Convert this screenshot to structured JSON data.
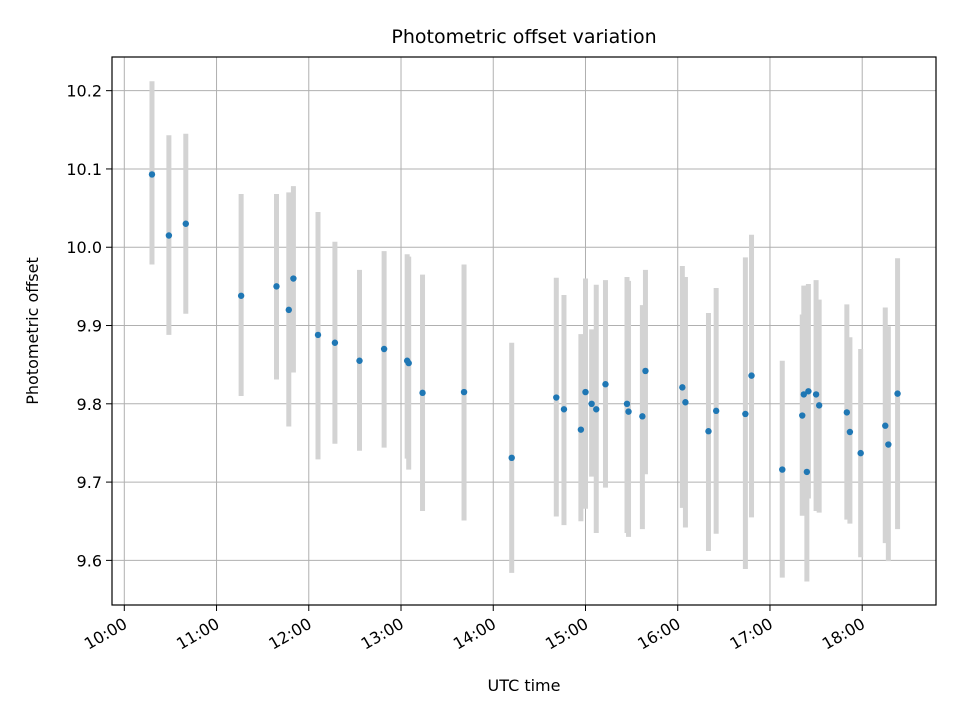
{
  "chart_data": {
    "type": "scatter",
    "title": "Photometric offset variation",
    "xlabel": "UTC time",
    "ylabel": "Photometric offset",
    "x_tick_labels": [
      "10:00",
      "11:00",
      "12:00",
      "13:00",
      "14:00",
      "15:00",
      "16:00",
      "17:00",
      "18:00"
    ],
    "y_tick_labels": [
      "9.6",
      "9.7",
      "9.8",
      "9.9",
      "10.0",
      "10.1",
      "10.2"
    ],
    "xlim": [
      "09:52",
      "18:48"
    ],
    "ylim": [
      9.543,
      10.243
    ],
    "grid": true,
    "colors": {
      "points": "#1f77b4",
      "errorbars": "#d3d3d3",
      "grid": "#b0b0b0"
    },
    "series": [
      {
        "x": [
          "10:18",
          "10:29",
          "10:40",
          "11:16",
          "11:39",
          "11:47",
          "11:50",
          "12:06",
          "12:17",
          "12:33",
          "12:49",
          "13:04",
          "13:05",
          "13:14",
          "13:41",
          "14:12",
          "14:41",
          "14:46",
          "14:57",
          "15:00",
          "15:04",
          "15:07",
          "15:13",
          "15:27",
          "15:28",
          "15:37",
          "15:39",
          "16:03",
          "16:05",
          "16:20",
          "16:25",
          "16:44",
          "16:48",
          "17:08",
          "17:21",
          "17:22",
          "17:24",
          "17:25",
          "17:30",
          "17:32",
          "17:50",
          "17:52",
          "17:59",
          "18:15",
          "18:17",
          "18:23"
        ],
        "y": [
          10.093,
          10.015,
          10.03,
          9.938,
          9.95,
          9.92,
          9.96,
          9.888,
          9.878,
          9.855,
          9.87,
          9.855,
          9.852,
          9.814,
          9.815,
          9.731,
          9.808,
          9.793,
          9.767,
          9.815,
          9.8,
          9.793,
          9.825,
          9.8,
          9.79,
          9.784,
          9.842,
          9.821,
          9.802,
          9.765,
          9.791,
          9.787,
          9.836,
          9.716,
          9.785,
          9.812,
          9.713,
          9.816,
          9.812,
          9.798,
          9.789,
          9.764,
          9.737,
          9.772,
          9.748,
          9.813
        ],
        "err_low": [
          9.978,
          9.888,
          9.915,
          9.81,
          9.831,
          9.771,
          9.84,
          9.729,
          9.749,
          9.74,
          9.744,
          9.73,
          9.716,
          9.663,
          9.651,
          9.584,
          9.656,
          9.645,
          9.65,
          9.666,
          9.707,
          9.635,
          9.693,
          9.635,
          9.63,
          9.64,
          9.71,
          9.667,
          9.642,
          9.612,
          9.634,
          9.589,
          9.655,
          9.578,
          9.657,
          9.66,
          9.573,
          9.679,
          9.663,
          9.661,
          9.652,
          9.647,
          9.604,
          9.622,
          9.599,
          9.64
        ],
        "err_high": [
          10.212,
          10.143,
          10.145,
          10.068,
          10.068,
          10.07,
          10.078,
          10.045,
          10.007,
          9.971,
          9.995,
          9.991,
          9.988,
          9.965,
          9.978,
          9.878,
          9.961,
          9.939,
          9.889,
          9.96,
          9.895,
          9.952,
          9.958,
          9.962,
          9.957,
          9.926,
          9.971,
          9.976,
          9.962,
          9.916,
          9.948,
          9.987,
          10.016,
          9.855,
          9.914,
          9.951,
          9.951,
          9.953,
          9.958,
          9.933,
          9.927,
          9.885,
          9.87,
          9.923,
          9.899,
          9.986
        ]
      }
    ]
  }
}
